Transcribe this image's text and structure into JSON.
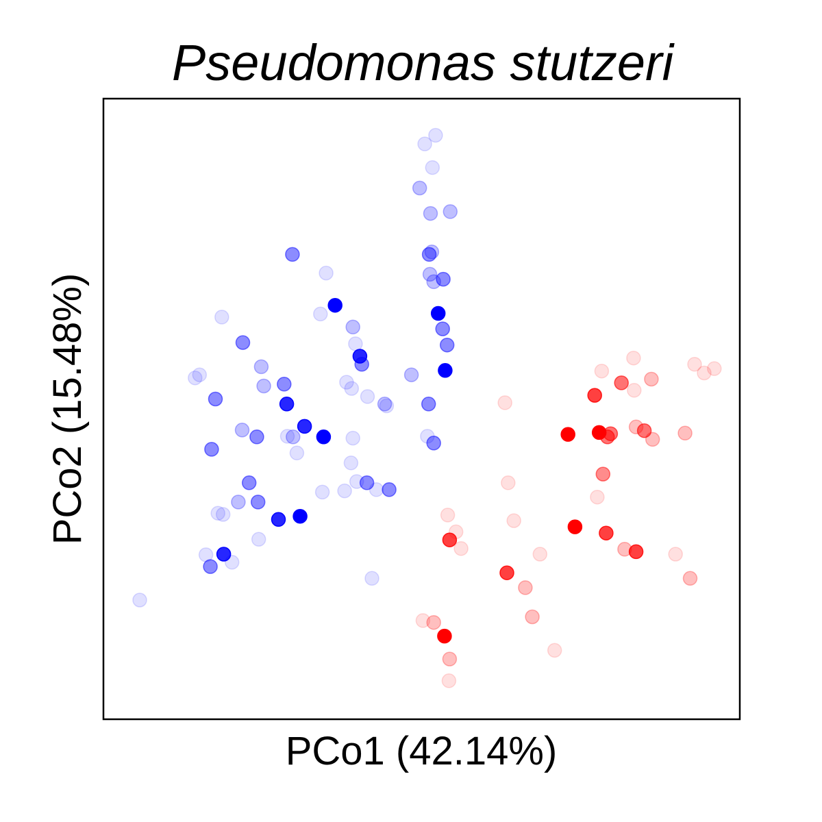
{
  "chart_data": {
    "type": "scatter",
    "title": "Pseudomonas stutzeri",
    "xlabel": "PCo1 (42.14%)",
    "ylabel": "PCo2 (15.48%)",
    "xlim": [
      0,
      100
    ],
    "ylim": [
      0,
      100
    ],
    "ticks": "none",
    "grid": false,
    "legend": "none",
    "series": [
      {
        "color": "#0000ff",
        "points": [
          {
            "x": 52.2,
            "y": 94.1,
            "a": 0.12
          },
          {
            "x": 50.5,
            "y": 92.7,
            "a": 0.12
          },
          {
            "x": 51.7,
            "y": 88.9,
            "a": 0.12
          },
          {
            "x": 49.7,
            "y": 85.6,
            "a": 0.25
          },
          {
            "x": 54.5,
            "y": 81.8,
            "a": 0.25
          },
          {
            "x": 51.4,
            "y": 81.5,
            "a": 0.25
          },
          {
            "x": 51.6,
            "y": 75.3,
            "a": 0.25
          },
          {
            "x": 51.2,
            "y": 74.9,
            "a": 0.45
          },
          {
            "x": 51.3,
            "y": 71.7,
            "a": 0.25
          },
          {
            "x": 51.9,
            "y": 70.5,
            "a": 0.25
          },
          {
            "x": 53.4,
            "y": 70.9,
            "a": 0.45
          },
          {
            "x": 52.6,
            "y": 65.4,
            "a": 1.0
          },
          {
            "x": 53.3,
            "y": 62.9,
            "a": 0.45
          },
          {
            "x": 54.0,
            "y": 60.3,
            "a": 0.45
          },
          {
            "x": 53.7,
            "y": 56.2,
            "a": 1.0
          },
          {
            "x": 48.4,
            "y": 55.5,
            "a": 0.25
          },
          {
            "x": 51.1,
            "y": 50.8,
            "a": 0.45
          },
          {
            "x": 50.9,
            "y": 45.6,
            "a": 0.12
          },
          {
            "x": 51.9,
            "y": 44.5,
            "a": 0.45
          },
          {
            "x": 29.7,
            "y": 74.9,
            "a": 0.45
          },
          {
            "x": 35.0,
            "y": 71.9,
            "a": 0.12
          },
          {
            "x": 36.4,
            "y": 66.7,
            "a": 1.0
          },
          {
            "x": 34.1,
            "y": 65.3,
            "a": 0.12
          },
          {
            "x": 39.2,
            "y": 63.2,
            "a": 0.25
          },
          {
            "x": 39.6,
            "y": 60.5,
            "a": 0.12
          },
          {
            "x": 40.3,
            "y": 58.5,
            "a": 0.85
          },
          {
            "x": 40.6,
            "y": 57.2,
            "a": 0.45
          },
          {
            "x": 38.2,
            "y": 54.3,
            "a": 0.12
          },
          {
            "x": 39.0,
            "y": 53.3,
            "a": 0.12
          },
          {
            "x": 41.5,
            "y": 52.0,
            "a": 0.12
          },
          {
            "x": 44.2,
            "y": 50.8,
            "a": 0.25
          },
          {
            "x": 44.5,
            "y": 50.5,
            "a": 0.12
          },
          {
            "x": 18.6,
            "y": 64.8,
            "a": 0.12
          },
          {
            "x": 21.9,
            "y": 60.7,
            "a": 0.45
          },
          {
            "x": 14.4,
            "y": 55.0,
            "a": 0.12
          },
          {
            "x": 15.1,
            "y": 55.5,
            "a": 0.12
          },
          {
            "x": 17.6,
            "y": 51.6,
            "a": 0.45
          },
          {
            "x": 24.8,
            "y": 56.8,
            "a": 0.25
          },
          {
            "x": 25.2,
            "y": 53.7,
            "a": 0.25
          },
          {
            "x": 28.4,
            "y": 54.0,
            "a": 0.45
          },
          {
            "x": 28.8,
            "y": 50.8,
            "a": 0.85
          },
          {
            "x": 21.8,
            "y": 46.6,
            "a": 0.25
          },
          {
            "x": 24.1,
            "y": 45.5,
            "a": 0.45
          },
          {
            "x": 28.9,
            "y": 45.6,
            "a": 0.12
          },
          {
            "x": 29.8,
            "y": 45.5,
            "a": 0.25
          },
          {
            "x": 31.6,
            "y": 47.2,
            "a": 0.85
          },
          {
            "x": 34.6,
            "y": 45.5,
            "a": 1.0
          },
          {
            "x": 39.2,
            "y": 45.3,
            "a": 0.12
          },
          {
            "x": 30.4,
            "y": 42.9,
            "a": 0.12
          },
          {
            "x": 17.0,
            "y": 43.5,
            "a": 0.45
          },
          {
            "x": 22.9,
            "y": 38.1,
            "a": 0.45
          },
          {
            "x": 24.3,
            "y": 35.0,
            "a": 0.45
          },
          {
            "x": 21.2,
            "y": 35.0,
            "a": 0.25
          },
          {
            "x": 18.0,
            "y": 33.2,
            "a": 0.12
          },
          {
            "x": 18.8,
            "y": 33.0,
            "a": 0.12
          },
          {
            "x": 27.5,
            "y": 32.2,
            "a": 0.85
          },
          {
            "x": 30.9,
            "y": 32.7,
            "a": 1.0
          },
          {
            "x": 34.4,
            "y": 36.6,
            "a": 0.12
          },
          {
            "x": 37.9,
            "y": 36.8,
            "a": 0.12
          },
          {
            "x": 39.8,
            "y": 38.3,
            "a": 0.12
          },
          {
            "x": 41.4,
            "y": 38.1,
            "a": 0.45
          },
          {
            "x": 42.9,
            "y": 37.0,
            "a": 0.12
          },
          {
            "x": 44.9,
            "y": 37.0,
            "a": 0.45
          },
          {
            "x": 38.9,
            "y": 41.3,
            "a": 0.12
          },
          {
            "x": 16.1,
            "y": 26.5,
            "a": 0.12
          },
          {
            "x": 18.9,
            "y": 26.6,
            "a": 0.85
          },
          {
            "x": 16.8,
            "y": 24.6,
            "a": 0.45
          },
          {
            "x": 20.2,
            "y": 25.3,
            "a": 0.12
          },
          {
            "x": 24.4,
            "y": 29.0,
            "a": 0.12
          },
          {
            "x": 42.2,
            "y": 22.7,
            "a": 0.12
          },
          {
            "x": 5.7,
            "y": 19.2,
            "a": 0.12
          }
        ]
      },
      {
        "color": "#ff0000",
        "points": [
          {
            "x": 83.3,
            "y": 58.2,
            "a": 0.12
          },
          {
            "x": 92.9,
            "y": 57.2,
            "a": 0.12
          },
          {
            "x": 94.4,
            "y": 55.8,
            "a": 0.12
          },
          {
            "x": 96.0,
            "y": 56.5,
            "a": 0.12
          },
          {
            "x": 78.3,
            "y": 56.1,
            "a": 0.12
          },
          {
            "x": 81.4,
            "y": 54.2,
            "a": 0.55
          },
          {
            "x": 86.1,
            "y": 54.8,
            "a": 0.25
          },
          {
            "x": 77.2,
            "y": 52.2,
            "a": 0.75
          },
          {
            "x": 83.4,
            "y": 53.0,
            "a": 0.12
          },
          {
            "x": 63.1,
            "y": 51.0,
            "a": 0.12
          },
          {
            "x": 73.0,
            "y": 45.9,
            "a": 1.0
          },
          {
            "x": 77.9,
            "y": 46.2,
            "a": 1.0
          },
          {
            "x": 79.7,
            "y": 46.0,
            "a": 0.55
          },
          {
            "x": 79.2,
            "y": 45.5,
            "a": 0.55
          },
          {
            "x": 83.7,
            "y": 47.1,
            "a": 0.25
          },
          {
            "x": 85.0,
            "y": 46.5,
            "a": 0.55
          },
          {
            "x": 86.3,
            "y": 45.1,
            "a": 0.25
          },
          {
            "x": 91.4,
            "y": 46.1,
            "a": 0.25
          },
          {
            "x": 78.5,
            "y": 39.5,
            "a": 0.45
          },
          {
            "x": 63.6,
            "y": 38.1,
            "a": 0.12
          },
          {
            "x": 77.6,
            "y": 35.8,
            "a": 0.12
          },
          {
            "x": 74.1,
            "y": 31.0,
            "a": 1.0
          },
          {
            "x": 79.0,
            "y": 30.0,
            "a": 0.75
          },
          {
            "x": 64.5,
            "y": 32.0,
            "a": 0.12
          },
          {
            "x": 54.1,
            "y": 32.9,
            "a": 0.12
          },
          {
            "x": 55.4,
            "y": 30.2,
            "a": 0.12
          },
          {
            "x": 54.4,
            "y": 28.9,
            "a": 0.75
          },
          {
            "x": 56.2,
            "y": 27.5,
            "a": 0.12
          },
          {
            "x": 81.9,
            "y": 27.4,
            "a": 0.25
          },
          {
            "x": 83.7,
            "y": 27.0,
            "a": 0.75
          },
          {
            "x": 68.6,
            "y": 26.6,
            "a": 0.12
          },
          {
            "x": 89.9,
            "y": 26.6,
            "a": 0.12
          },
          {
            "x": 63.4,
            "y": 23.6,
            "a": 0.75
          },
          {
            "x": 66.3,
            "y": 21.2,
            "a": 0.25
          },
          {
            "x": 92.2,
            "y": 22.7,
            "a": 0.25
          },
          {
            "x": 67.4,
            "y": 16.5,
            "a": 0.25
          },
          {
            "x": 50.2,
            "y": 15.9,
            "a": 0.12
          },
          {
            "x": 51.9,
            "y": 15.6,
            "a": 0.25
          },
          {
            "x": 53.6,
            "y": 13.4,
            "a": 1.0
          },
          {
            "x": 70.9,
            "y": 11.1,
            "a": 0.12
          },
          {
            "x": 54.4,
            "y": 9.7,
            "a": 0.25
          },
          {
            "x": 54.3,
            "y": 6.2,
            "a": 0.12
          }
        ]
      }
    ]
  }
}
